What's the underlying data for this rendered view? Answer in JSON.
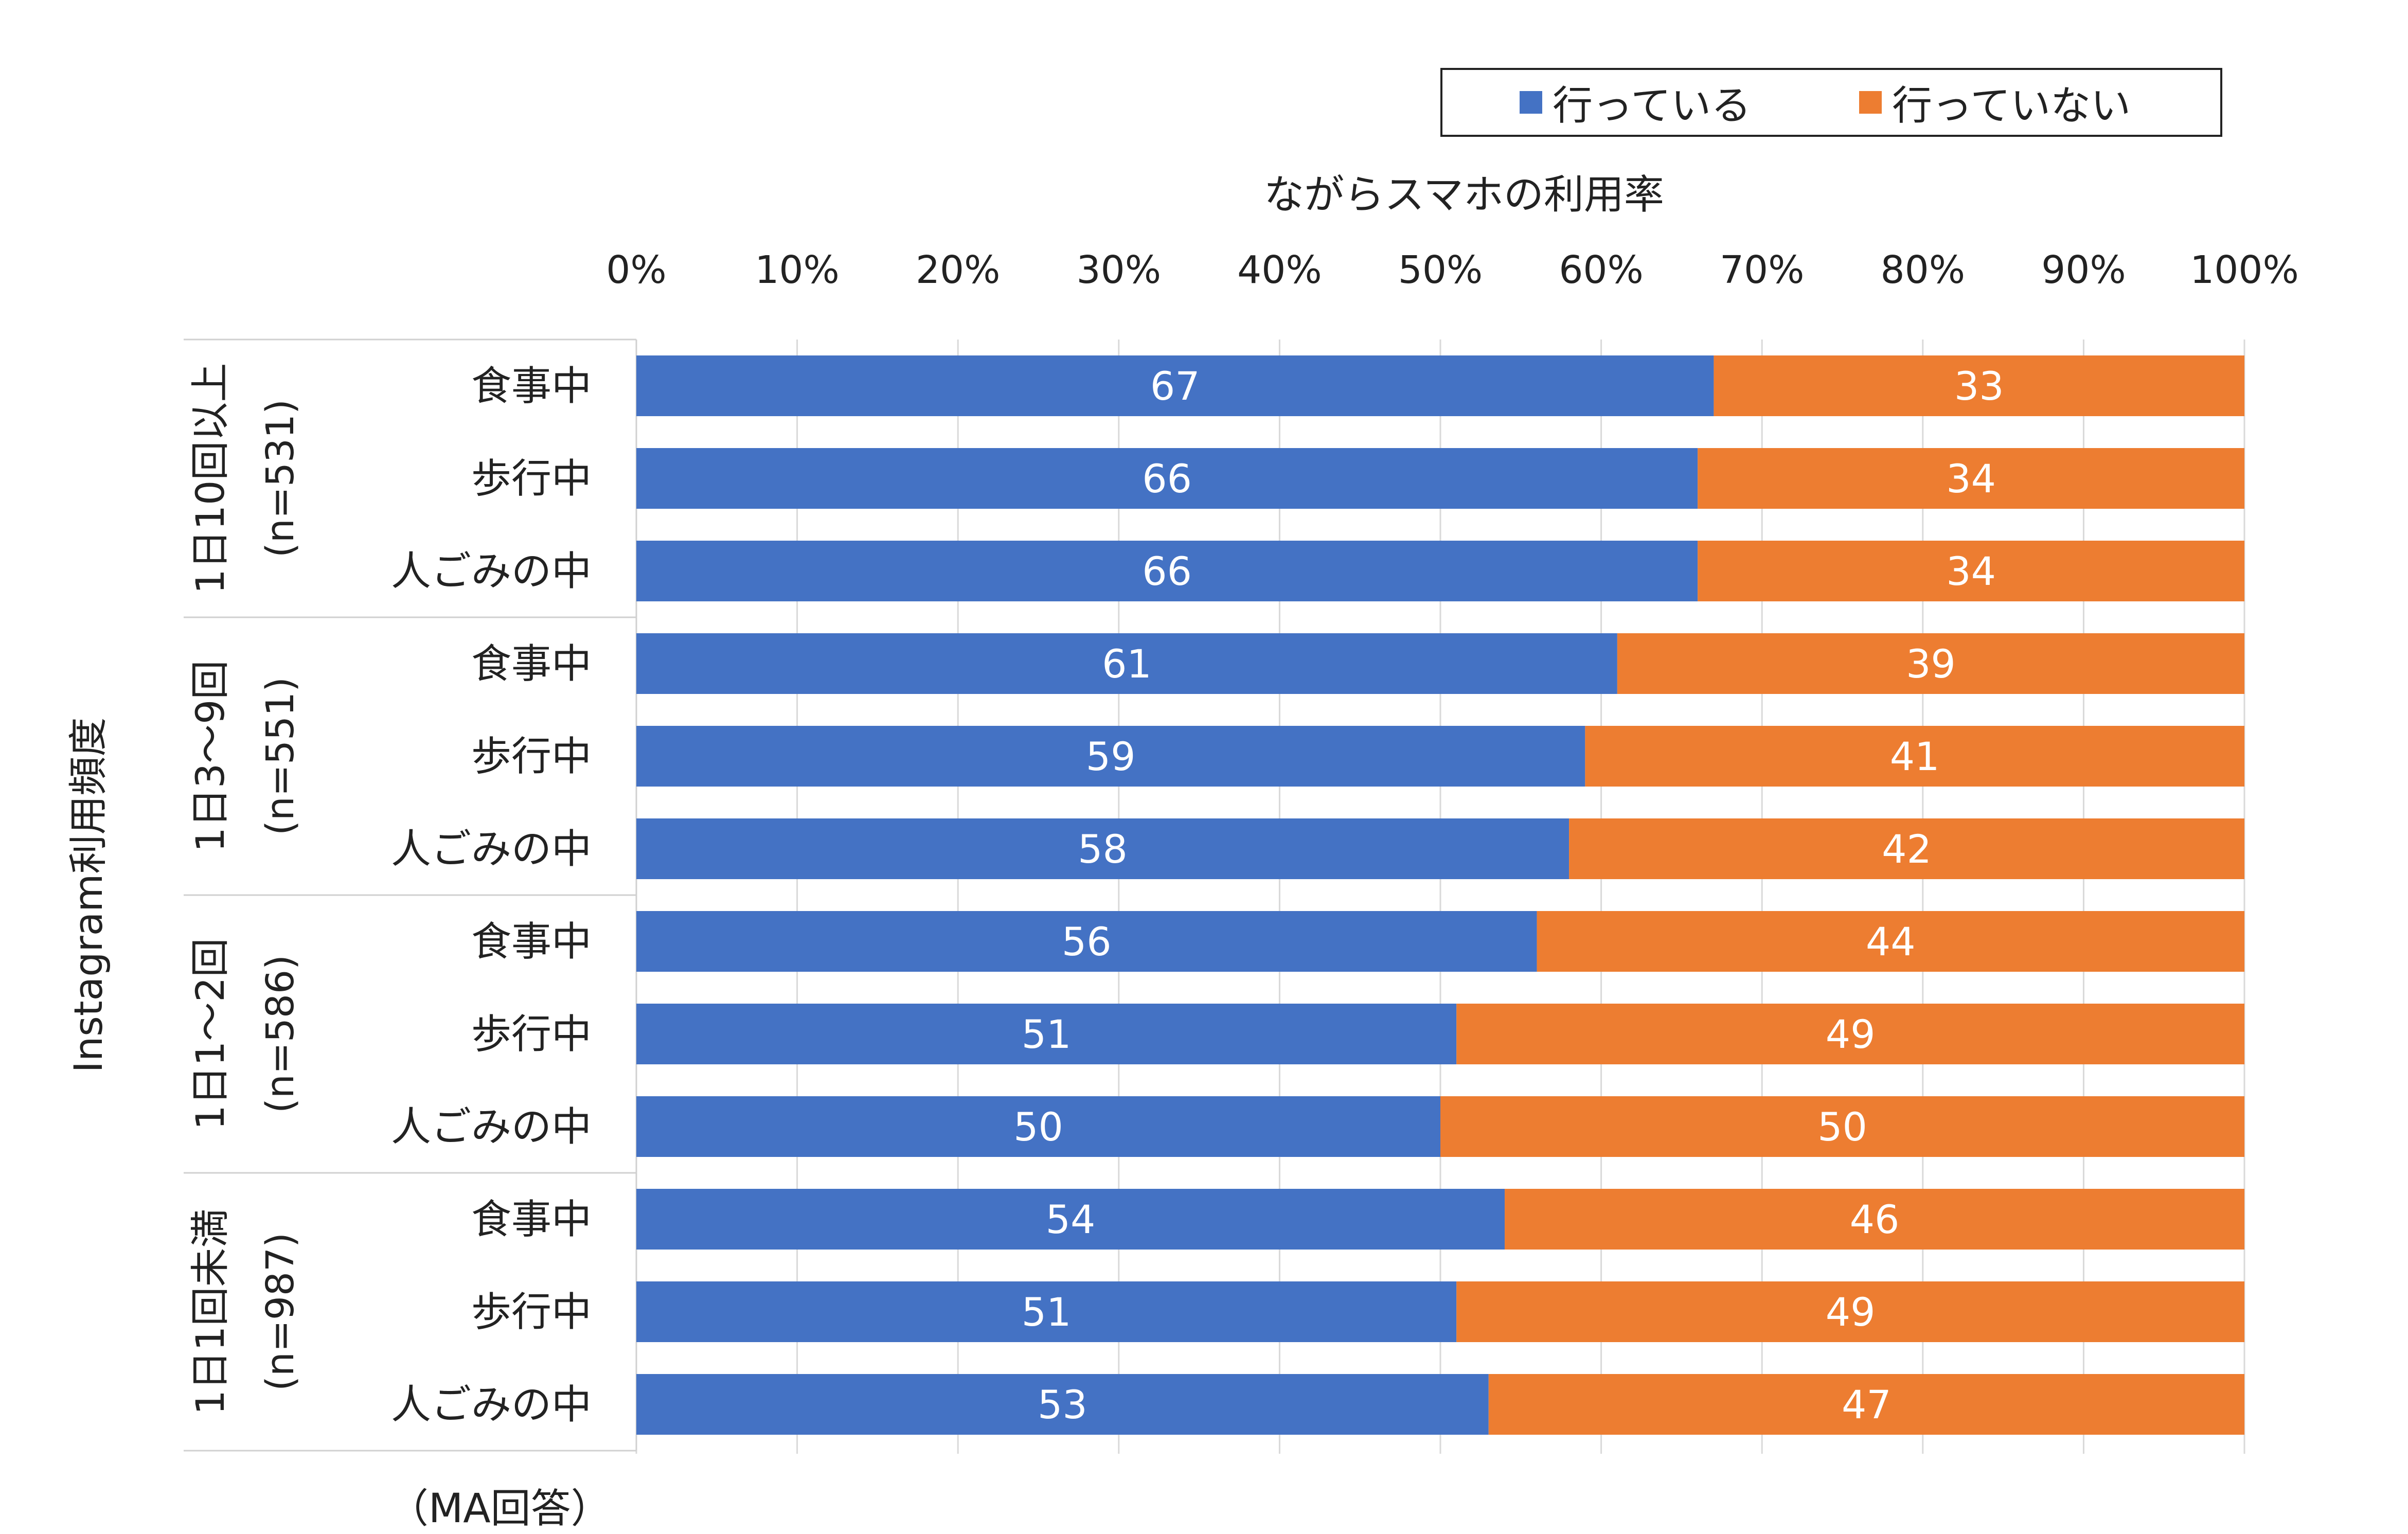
{
  "chart_data": {
    "type": "bar",
    "stacked": true,
    "orientation": "horizontal",
    "title": "ながらスマホの利用率",
    "ylabel": "Instagram利用頻度",
    "xlim": [
      0,
      100
    ],
    "xticks": [
      "0%",
      "10%",
      "20%",
      "30%",
      "40%",
      "50%",
      "60%",
      "70%",
      "80%",
      "90%",
      "100%"
    ],
    "grid": true,
    "legend_position": "top-right",
    "series": [
      {
        "name": "行っている",
        "color": "#4472C4",
        "values": [
          67,
          66,
          66,
          61,
          59,
          58,
          56,
          51,
          50,
          54,
          51,
          53
        ]
      },
      {
        "name": "行っていない",
        "color": "#ED7D31",
        "values": [
          33,
          34,
          34,
          39,
          41,
          42,
          44,
          49,
          50,
          46,
          49,
          47
        ]
      }
    ],
    "groups": [
      {
        "label": "1日10回以上",
        "n": "(n=531)",
        "categories": [
          "食事中",
          "歩行中",
          "人ごみの中"
        ]
      },
      {
        "label": "1日3～9回",
        "n": "(n=551)",
        "categories": [
          "食事中",
          "歩行中",
          "人ごみの中"
        ]
      },
      {
        "label": "1日1～2回",
        "n": "(n=586)",
        "categories": [
          "食事中",
          "歩行中",
          "人ごみの中"
        ]
      },
      {
        "label": "1日1回未満",
        "n": "(n=987)",
        "categories": [
          "食事中",
          "歩行中",
          "人ごみの中"
        ]
      }
    ],
    "note": "（MA回答）"
  }
}
